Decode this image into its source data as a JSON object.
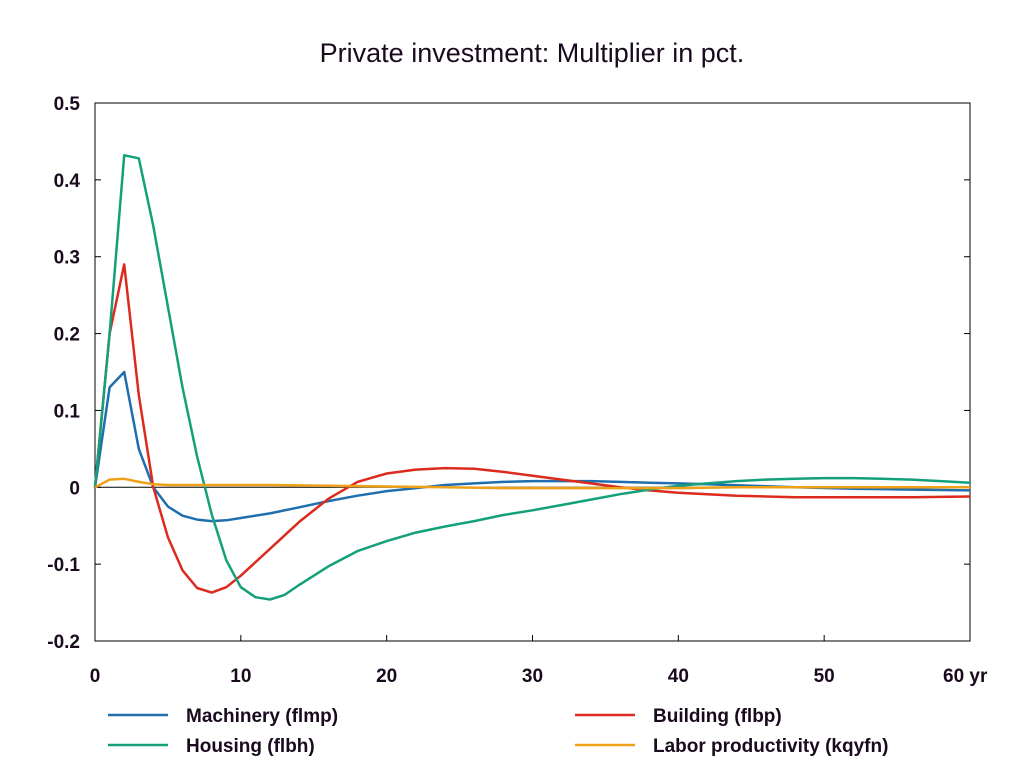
{
  "chart_data": {
    "type": "line",
    "title": "Private investment: Multiplier in pct.",
    "xlabel": "",
    "ylabel": "",
    "x_unit_label": "yr",
    "xlim": [
      0,
      60
    ],
    "ylim": [
      -0.2,
      0.5
    ],
    "x_ticks": [
      "0",
      "10",
      "20",
      "30",
      "40",
      "50",
      "60 yr"
    ],
    "y_ticks": [
      "0.5",
      "0.4",
      "0.3",
      "0.2",
      "0.1",
      "0",
      "-0.1",
      "-0.2"
    ],
    "grid": false,
    "zero_line": true,
    "legend_position": "bottom",
    "series": [
      {
        "name": "Machinery (flmp)",
        "color": "#1f6fae",
        "points": [
          [
            0,
            0
          ],
          [
            1,
            0.13
          ],
          [
            2,
            0.15
          ],
          [
            3,
            0.05
          ],
          [
            4,
            0.0
          ],
          [
            5,
            -0.025
          ],
          [
            6,
            -0.037
          ],
          [
            7,
            -0.042
          ],
          [
            8,
            -0.044
          ],
          [
            9,
            -0.043
          ],
          [
            10,
            -0.04
          ],
          [
            12,
            -0.034
          ],
          [
            14,
            -0.026
          ],
          [
            16,
            -0.018
          ],
          [
            18,
            -0.011
          ],
          [
            20,
            -0.005
          ],
          [
            22,
            -0.001
          ],
          [
            24,
            0.003
          ],
          [
            26,
            0.005
          ],
          [
            28,
            0.007
          ],
          [
            30,
            0.008
          ],
          [
            32,
            0.008
          ],
          [
            34,
            0.008
          ],
          [
            36,
            0.007
          ],
          [
            38,
            0.006
          ],
          [
            40,
            0.005
          ],
          [
            42,
            0.004
          ],
          [
            45,
            0.002
          ],
          [
            48,
            0.0
          ],
          [
            52,
            -0.002
          ],
          [
            56,
            -0.003
          ],
          [
            60,
            -0.004
          ]
        ]
      },
      {
        "name": "Building (flbp)",
        "color": "#dc2a1e",
        "points": [
          [
            0,
            0
          ],
          [
            1,
            0.2
          ],
          [
            2,
            0.29
          ],
          [
            3,
            0.12
          ],
          [
            4,
            0.0
          ],
          [
            5,
            -0.065
          ],
          [
            6,
            -0.108
          ],
          [
            7,
            -0.131
          ],
          [
            8,
            -0.137
          ],
          [
            9,
            -0.13
          ],
          [
            10,
            -0.115
          ],
          [
            12,
            -0.08
          ],
          [
            14,
            -0.045
          ],
          [
            16,
            -0.015
          ],
          [
            18,
            0.007
          ],
          [
            20,
            0.018
          ],
          [
            22,
            0.023
          ],
          [
            24,
            0.025
          ],
          [
            26,
            0.024
          ],
          [
            28,
            0.02
          ],
          [
            30,
            0.015
          ],
          [
            32,
            0.01
          ],
          [
            34,
            0.005
          ],
          [
            36,
            0.0
          ],
          [
            38,
            -0.004
          ],
          [
            40,
            -0.007
          ],
          [
            44,
            -0.011
          ],
          [
            48,
            -0.013
          ],
          [
            52,
            -0.013
          ],
          [
            56,
            -0.013
          ],
          [
            60,
            -0.012
          ]
        ]
      },
      {
        "name": "Housing (flbh)",
        "color": "#14a07a",
        "points": [
          [
            0,
            0
          ],
          [
            1,
            0.2
          ],
          [
            2,
            0.432
          ],
          [
            3,
            0.428
          ],
          [
            4,
            0.34
          ],
          [
            5,
            0.235
          ],
          [
            6,
            0.13
          ],
          [
            7,
            0.04
          ],
          [
            8,
            -0.035
          ],
          [
            9,
            -0.095
          ],
          [
            10,
            -0.13
          ],
          [
            11,
            -0.143
          ],
          [
            12,
            -0.146
          ],
          [
            13,
            -0.14
          ],
          [
            14,
            -0.127
          ],
          [
            16,
            -0.103
          ],
          [
            18,
            -0.083
          ],
          [
            20,
            -0.07
          ],
          [
            22,
            -0.059
          ],
          [
            24,
            -0.051
          ],
          [
            26,
            -0.044
          ],
          [
            28,
            -0.036
          ],
          [
            30,
            -0.03
          ],
          [
            32,
            -0.023
          ],
          [
            34,
            -0.016
          ],
          [
            36,
            -0.009
          ],
          [
            38,
            -0.003
          ],
          [
            40,
            0.002
          ],
          [
            42,
            0.005
          ],
          [
            44,
            0.008
          ],
          [
            46,
            0.01
          ],
          [
            48,
            0.011
          ],
          [
            50,
            0.012
          ],
          [
            52,
            0.012
          ],
          [
            54,
            0.011
          ],
          [
            56,
            0.01
          ],
          [
            58,
            0.008
          ],
          [
            60,
            0.006
          ]
        ]
      },
      {
        "name": "Labor productivity (kqyfn)",
        "color": "#efa019",
        "points": [
          [
            0,
            0
          ],
          [
            1,
            0.01
          ],
          [
            2,
            0.011
          ],
          [
            3,
            0.007
          ],
          [
            4,
            0.004
          ],
          [
            5,
            0.003
          ],
          [
            8,
            0.003
          ],
          [
            12,
            0.003
          ],
          [
            16,
            0.002
          ],
          [
            20,
            0.001
          ],
          [
            24,
            0.0
          ],
          [
            28,
            -0.001
          ],
          [
            32,
            -0.001
          ],
          [
            36,
            -0.001
          ],
          [
            40,
            -0.001
          ],
          [
            44,
            0.0
          ],
          [
            48,
            0.0
          ],
          [
            52,
            0.0
          ],
          [
            56,
            0.0
          ],
          [
            60,
            0.0
          ]
        ]
      }
    ]
  }
}
